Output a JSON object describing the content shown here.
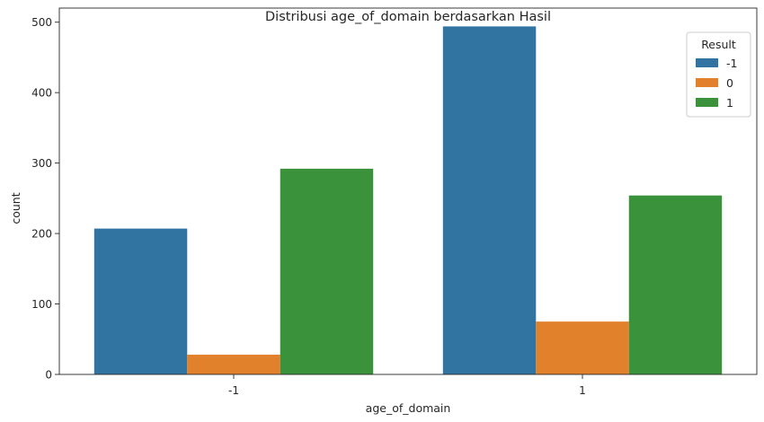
{
  "chart_data": {
    "type": "bar",
    "title": "Distribusi age_of_domain berdasarkan Hasil",
    "xlabel": "age_of_domain",
    "ylabel": "count",
    "categories": [
      "-1",
      "1"
    ],
    "yticks": [
      "0",
      "100",
      "200",
      "300",
      "400",
      "500"
    ],
    "ylim": [
      0,
      520
    ],
    "grid": false,
    "legend": {
      "title": "Result",
      "placement": "top-right"
    },
    "series": [
      {
        "name": "-1",
        "color": "#3274a1",
        "values": [
          207,
          494
        ]
      },
      {
        "name": "0",
        "color": "#e1812c",
        "values": [
          28,
          75
        ]
      },
      {
        "name": "1",
        "color": "#3a923a",
        "values": [
          292,
          254
        ]
      }
    ]
  }
}
